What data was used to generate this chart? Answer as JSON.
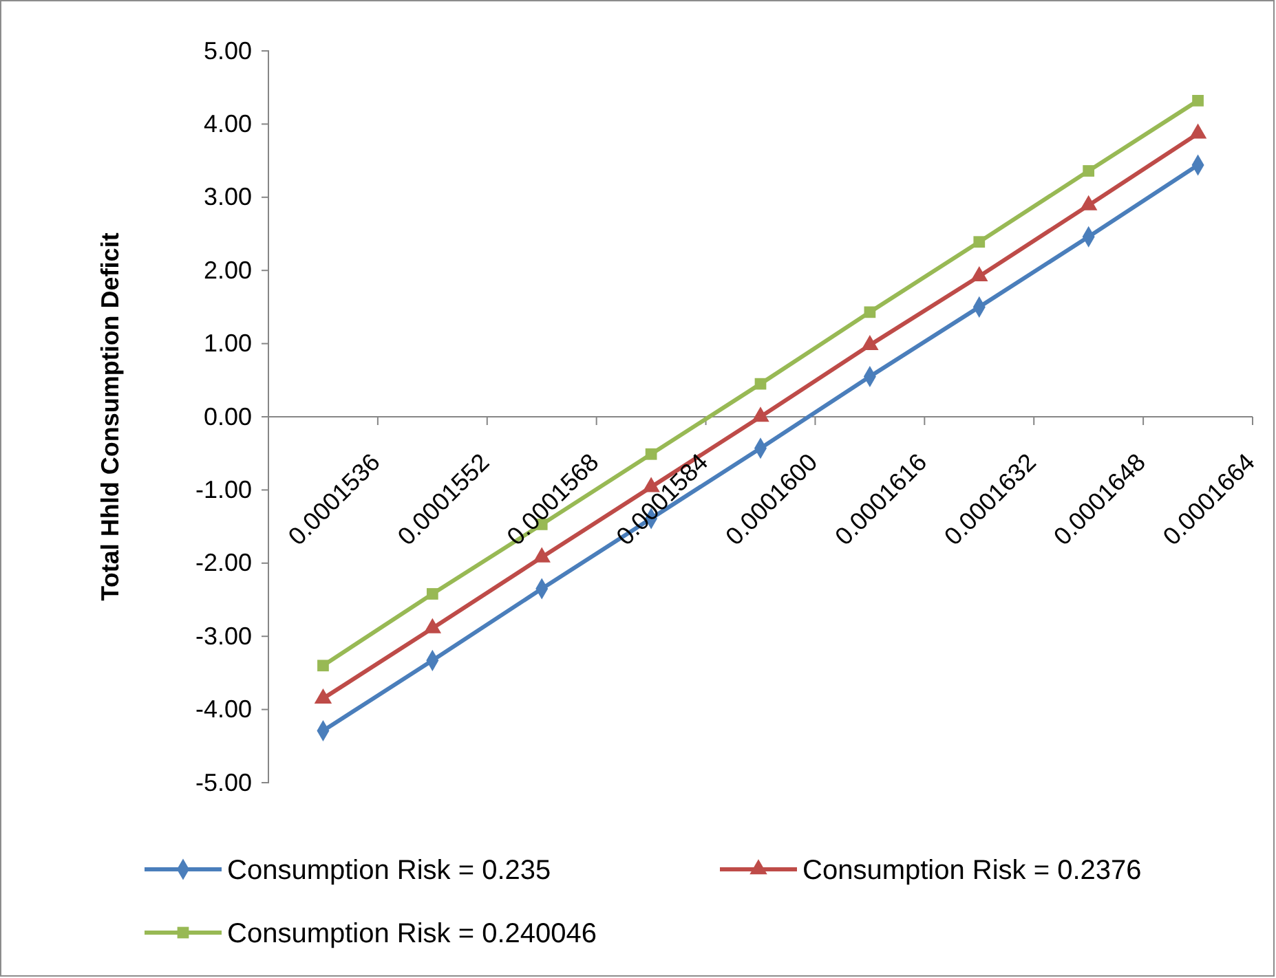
{
  "chart_data": {
    "type": "line",
    "ylabel": "Total Hhld Consumption Deficit",
    "categories": [
      "0.0001536",
      "0.0001552",
      "0.0001568",
      "0.0001584",
      "0.0001600",
      "0.0001616",
      "0.0001632",
      "0.0001648",
      "0.0001664"
    ],
    "ylim": [
      -5,
      5
    ],
    "yticks": [
      {
        "value": -5,
        "label": "-5.00"
      },
      {
        "value": -4,
        "label": "-4.00"
      },
      {
        "value": -3,
        "label": "-3.00"
      },
      {
        "value": -2,
        "label": "-2.00"
      },
      {
        "value": -1,
        "label": "-1.00"
      },
      {
        "value": 0,
        "label": "0.00"
      },
      {
        "value": 1,
        "label": "1.00"
      },
      {
        "value": 2,
        "label": "2.00"
      },
      {
        "value": 3,
        "label": "3.00"
      },
      {
        "value": 4,
        "label": "4.00"
      },
      {
        "value": 5,
        "label": "5.00"
      }
    ],
    "legend": "bottom",
    "series": [
      {
        "name": "Consumption Risk = 0.235",
        "color": "#4a7ebb",
        "marker": "diamond",
        "values": [
          -4.29,
          -3.33,
          -2.35,
          -1.39,
          -0.43,
          0.55,
          1.5,
          2.46,
          3.44
        ]
      },
      {
        "name": "Consumption Risk = 0.2376",
        "color": "#be4b48",
        "marker": "triangle",
        "values": [
          -3.85,
          -2.89,
          -1.92,
          -0.96,
          0.0,
          0.98,
          1.92,
          2.89,
          3.87
        ]
      },
      {
        "name": "Consumption Risk = 0.240046",
        "color": "#98b954",
        "marker": "square",
        "values": [
          -3.4,
          -2.42,
          -1.47,
          -0.51,
          0.45,
          1.43,
          2.39,
          3.36,
          4.32
        ]
      }
    ]
  }
}
